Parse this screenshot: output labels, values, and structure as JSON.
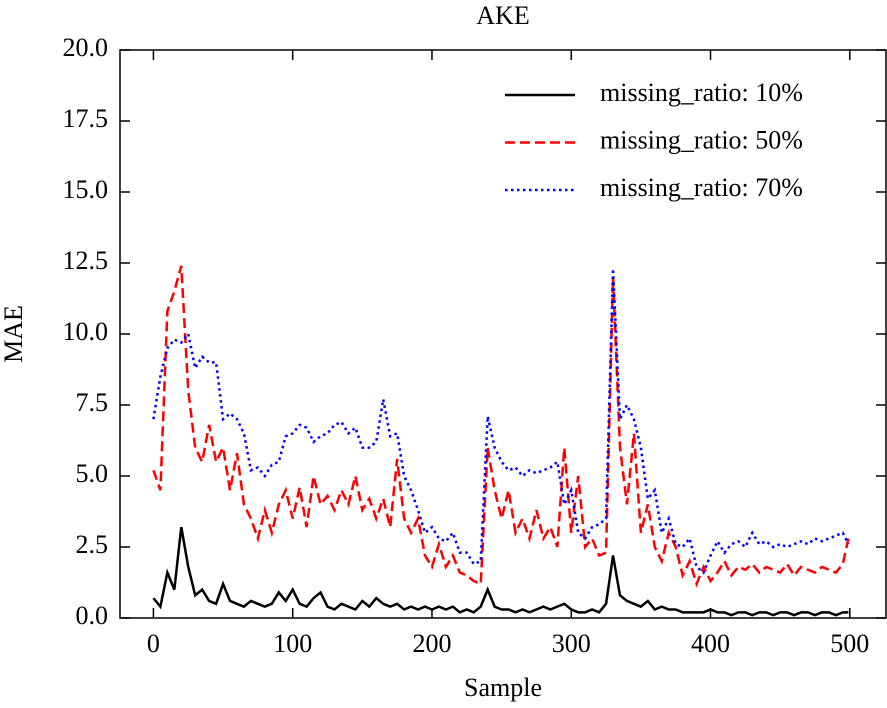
{
  "chart_data": {
    "type": "line",
    "title": "AKE",
    "xlabel": "Sample",
    "ylabel": "MAE",
    "x": [
      0,
      5,
      10,
      15,
      20,
      25,
      30,
      35,
      40,
      45,
      50,
      55,
      60,
      65,
      70,
      75,
      80,
      85,
      90,
      95,
      100,
      105,
      110,
      115,
      120,
      125,
      130,
      135,
      140,
      145,
      150,
      155,
      160,
      165,
      170,
      175,
      180,
      185,
      190,
      195,
      200,
      205,
      210,
      215,
      220,
      225,
      230,
      235,
      240,
      245,
      250,
      255,
      260,
      265,
      270,
      275,
      280,
      285,
      290,
      295,
      300,
      305,
      310,
      315,
      320,
      325,
      330,
      335,
      340,
      345,
      350,
      355,
      360,
      365,
      370,
      375,
      380,
      385,
      390,
      395,
      400,
      405,
      410,
      415,
      420,
      425,
      430,
      435,
      440,
      445,
      450,
      455,
      460,
      465,
      470,
      475,
      480,
      485,
      490,
      495,
      499
    ],
    "series": [
      {
        "name": "missing_ratio: 10%",
        "color": "#000000",
        "linestyle": "solid",
        "values": [
          0.7,
          0.4,
          1.6,
          1.0,
          3.2,
          1.8,
          0.8,
          1.0,
          0.6,
          0.5,
          1.2,
          0.6,
          0.5,
          0.4,
          0.6,
          0.5,
          0.4,
          0.5,
          0.9,
          0.6,
          1.0,
          0.5,
          0.4,
          0.7,
          0.9,
          0.4,
          0.3,
          0.5,
          0.4,
          0.3,
          0.6,
          0.4,
          0.7,
          0.5,
          0.4,
          0.5,
          0.3,
          0.4,
          0.3,
          0.4,
          0.3,
          0.4,
          0.3,
          0.4,
          0.2,
          0.3,
          0.2,
          0.4,
          1.0,
          0.4,
          0.3,
          0.3,
          0.2,
          0.3,
          0.2,
          0.3,
          0.4,
          0.3,
          0.4,
          0.5,
          0.3,
          0.2,
          0.2,
          0.3,
          0.2,
          0.5,
          2.2,
          0.8,
          0.6,
          0.5,
          0.4,
          0.6,
          0.3,
          0.4,
          0.3,
          0.3,
          0.2,
          0.2,
          0.2,
          0.2,
          0.3,
          0.2,
          0.2,
          0.1,
          0.2,
          0.2,
          0.1,
          0.2,
          0.2,
          0.1,
          0.2,
          0.2,
          0.1,
          0.2,
          0.2,
          0.1,
          0.2,
          0.2,
          0.1,
          0.2,
          0.2
        ]
      },
      {
        "name": "missing_ratio: 50%",
        "color": "#ff0000",
        "linestyle": "dashed",
        "values": [
          5.2,
          4.5,
          10.8,
          11.5,
          12.4,
          8.0,
          6.0,
          5.5,
          6.8,
          5.5,
          6.0,
          4.5,
          5.8,
          4.0,
          3.5,
          2.8,
          3.8,
          3.0,
          4.0,
          4.5,
          3.5,
          4.6,
          3.2,
          5.0,
          4.0,
          4.3,
          3.8,
          4.5,
          4.0,
          5.0,
          3.8,
          4.2,
          3.5,
          4.2,
          3.2,
          5.6,
          3.5,
          3.0,
          3.5,
          2.2,
          1.8,
          2.6,
          1.8,
          2.2,
          1.6,
          1.5,
          1.3,
          1.2,
          6.0,
          4.5,
          3.5,
          4.5,
          3.0,
          3.5,
          2.8,
          3.8,
          2.8,
          3.2,
          2.5,
          6.0,
          3.0,
          5.0,
          2.5,
          2.8,
          2.2,
          2.3,
          12.0,
          6.0,
          4.0,
          6.5,
          3.0,
          4.0,
          2.5,
          2.0,
          3.0,
          2.5,
          1.5,
          2.0,
          1.2,
          1.8,
          1.3,
          1.6,
          2.0,
          1.5,
          1.8,
          1.7,
          1.9,
          1.6,
          1.8,
          1.7,
          1.6,
          1.9,
          1.5,
          1.8,
          1.7,
          1.6,
          1.8,
          1.7,
          1.6,
          1.9,
          2.8
        ]
      },
      {
        "name": "missing_ratio: 70%",
        "color": "#0000ff",
        "linestyle": "dotted",
        "values": [
          7.0,
          8.5,
          9.5,
          9.8,
          9.7,
          10.0,
          8.8,
          9.2,
          9.0,
          9.0,
          7.0,
          7.2,
          7.0,
          6.5,
          5.2,
          5.3,
          5.0,
          5.4,
          5.5,
          6.4,
          6.5,
          6.8,
          6.7,
          6.2,
          6.4,
          6.5,
          6.8,
          6.9,
          6.5,
          6.7,
          6.0,
          6.0,
          6.2,
          7.7,
          6.4,
          6.5,
          5.0,
          4.5,
          3.8,
          3.0,
          3.2,
          2.8,
          2.7,
          3.0,
          2.3,
          2.3,
          1.9,
          2.0,
          7.1,
          6.0,
          5.5,
          5.2,
          5.3,
          5.0,
          5.2,
          5.1,
          5.2,
          5.3,
          5.5,
          4.0,
          4.5,
          3.0,
          2.8,
          3.2,
          3.3,
          3.5,
          12.3,
          7.0,
          7.5,
          7.0,
          6.0,
          4.2,
          4.5,
          3.0,
          3.5,
          2.6,
          2.5,
          2.8,
          1.8,
          1.6,
          2.2,
          2.7,
          2.3,
          2.6,
          2.7,
          2.5,
          3.0,
          2.6,
          2.7,
          2.5,
          2.6,
          2.5,
          2.6,
          2.7,
          2.6,
          2.8,
          2.7,
          2.8,
          2.9,
          3.0,
          2.6
        ]
      }
    ],
    "xlim": [
      -24,
      526
    ],
    "ylim": [
      0,
      20
    ],
    "xticks": [
      0,
      100,
      200,
      300,
      400,
      500
    ],
    "yticks": [
      {
        "value": 0,
        "label": "0.0"
      },
      2.5,
      {
        "value": 5,
        "label": "5.0"
      },
      7.5,
      {
        "value": 10,
        "label": "10.0"
      },
      12.5,
      {
        "value": 15,
        "label": "15.0"
      },
      17.5,
      {
        "value": 20,
        "label": "20.0"
      }
    ],
    "legend": "upper right"
  }
}
